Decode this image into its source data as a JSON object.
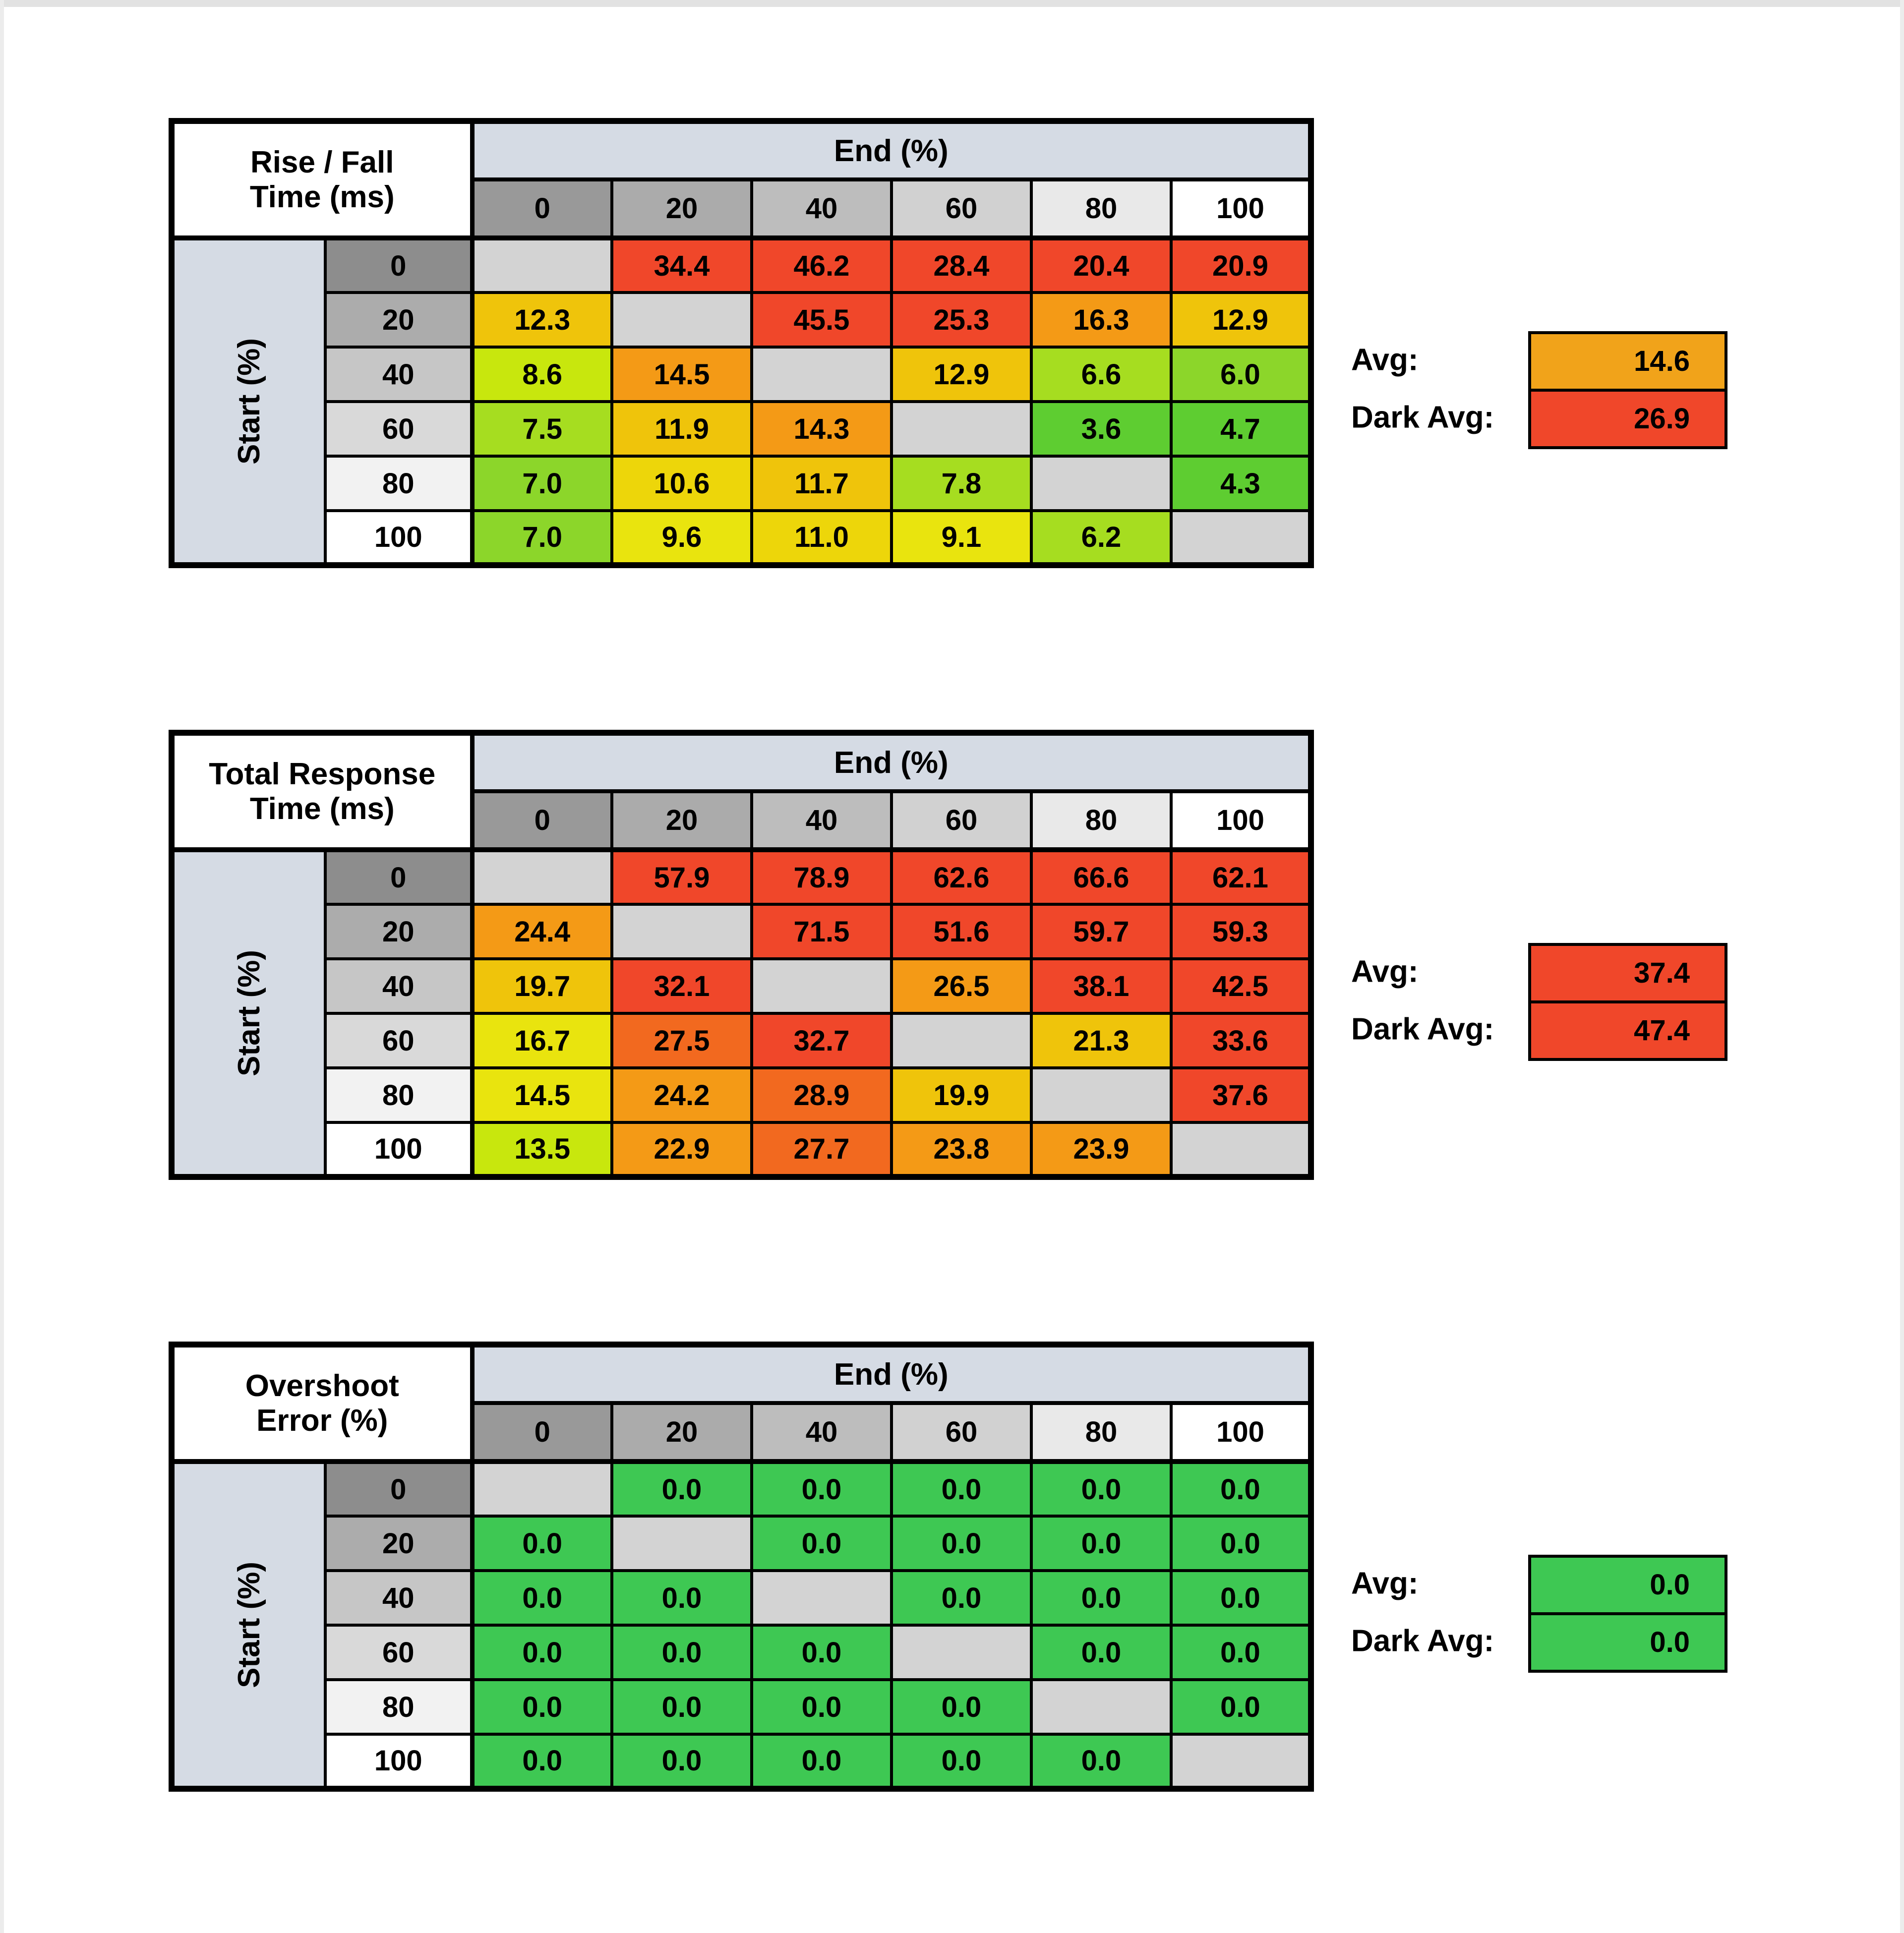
{
  "palette": {
    "diag": "#d3d3d3",
    "red": "#f0472a",
    "orangered": "#f2691f",
    "orange": "#f49a16",
    "gold": "#efc40b",
    "amber": "#edd60a",
    "yellow": "#e9e40e",
    "yellowgreen": "#c8e70d",
    "lime": "#a6dd20",
    "lightgreen": "#8cd62a",
    "green": "#5ecd31",
    "emerald": "#3ec853",
    "avgorange": "#f1a31a",
    "band_blue": "#d5dbe4",
    "col_header_shades": [
      "#999999",
      "#ababab",
      "#bdbdbd",
      "#d1d1d1",
      "#e9e9e9",
      "#ffffff"
    ],
    "row_header_shades": [
      "#8d8d8d",
      "#acacac",
      "#c6c6c6",
      "#d9d9d9",
      "#f2f2f2",
      "#ffffff"
    ]
  },
  "chart_data": [
    {
      "type": "heatmap",
      "title": "Rise / Fall Time (ms)",
      "title_lines": [
        "Rise / Fall",
        "Time (ms)"
      ],
      "xlabel": "End (%)",
      "ylabel": "Start (%)",
      "x_categories": [
        "0",
        "20",
        "40",
        "60",
        "80",
        "100"
      ],
      "y_categories": [
        "0",
        "20",
        "40",
        "60",
        "80",
        "100"
      ],
      "values": [
        [
          null,
          34.4,
          46.2,
          28.4,
          20.4,
          20.9
        ],
        [
          12.3,
          null,
          45.5,
          25.3,
          16.3,
          12.9
        ],
        [
          8.6,
          14.5,
          null,
          12.9,
          6.6,
          6.0
        ],
        [
          7.5,
          11.9,
          14.3,
          null,
          3.6,
          4.7
        ],
        [
          7.0,
          10.6,
          11.7,
          7.8,
          null,
          4.3
        ],
        [
          7.0,
          9.6,
          11.0,
          9.1,
          6.2,
          null
        ]
      ],
      "cell_colors": [
        [
          "diag",
          "red",
          "red",
          "red",
          "red",
          "red"
        ],
        [
          "gold",
          "diag",
          "red",
          "red",
          "orange",
          "gold"
        ],
        [
          "yellowgreen",
          "orange",
          "diag",
          "gold",
          "lime",
          "lightgreen"
        ],
        [
          "lime",
          "gold",
          "orange",
          "diag",
          "green",
          "green"
        ],
        [
          "lightgreen",
          "amber",
          "gold",
          "lime",
          "diag",
          "green"
        ],
        [
          "lightgreen",
          "yellow",
          "amber",
          "yellow",
          "lime",
          "diag"
        ]
      ],
      "avg": {
        "label": "Avg:",
        "value": 14.6,
        "color": "avgorange"
      },
      "dark_avg": {
        "label": "Dark Avg:",
        "value": 26.9,
        "color": "red"
      }
    },
    {
      "type": "heatmap",
      "title": "Total Response Time (ms)",
      "title_lines": [
        "Total Response",
        "Time (ms)"
      ],
      "xlabel": "End (%)",
      "ylabel": "Start (%)",
      "x_categories": [
        "0",
        "20",
        "40",
        "60",
        "80",
        "100"
      ],
      "y_categories": [
        "0",
        "20",
        "40",
        "60",
        "80",
        "100"
      ],
      "values": [
        [
          null,
          57.9,
          78.9,
          62.6,
          66.6,
          62.1
        ],
        [
          24.4,
          null,
          71.5,
          51.6,
          59.7,
          59.3
        ],
        [
          19.7,
          32.1,
          null,
          26.5,
          38.1,
          42.5
        ],
        [
          16.7,
          27.5,
          32.7,
          null,
          21.3,
          33.6
        ],
        [
          14.5,
          24.2,
          28.9,
          19.9,
          null,
          37.6
        ],
        [
          13.5,
          22.9,
          27.7,
          23.8,
          23.9,
          null
        ]
      ],
      "cell_colors": [
        [
          "diag",
          "red",
          "red",
          "red",
          "red",
          "red"
        ],
        [
          "orange",
          "diag",
          "red",
          "red",
          "red",
          "red"
        ],
        [
          "gold",
          "red",
          "diag",
          "orange",
          "red",
          "red"
        ],
        [
          "yellow",
          "orangered",
          "red",
          "diag",
          "gold",
          "red"
        ],
        [
          "yellow",
          "orange",
          "orangered",
          "gold",
          "diag",
          "red"
        ],
        [
          "yellowgreen",
          "orange",
          "orangered",
          "orange",
          "orange",
          "diag"
        ]
      ],
      "avg": {
        "label": "Avg:",
        "value": 37.4,
        "color": "red"
      },
      "dark_avg": {
        "label": "Dark Avg:",
        "value": 47.4,
        "color": "red"
      }
    },
    {
      "type": "heatmap",
      "title": "Overshoot Error (%)",
      "title_lines": [
        "Overshoot",
        "Error (%)"
      ],
      "xlabel": "End (%)",
      "ylabel": "Start (%)",
      "x_categories": [
        "0",
        "20",
        "40",
        "60",
        "80",
        "100"
      ],
      "y_categories": [
        "0",
        "20",
        "40",
        "60",
        "80",
        "100"
      ],
      "values": [
        [
          null,
          0.0,
          0.0,
          0.0,
          0.0,
          0.0
        ],
        [
          0.0,
          null,
          0.0,
          0.0,
          0.0,
          0.0
        ],
        [
          0.0,
          0.0,
          null,
          0.0,
          0.0,
          0.0
        ],
        [
          0.0,
          0.0,
          0.0,
          null,
          0.0,
          0.0
        ],
        [
          0.0,
          0.0,
          0.0,
          0.0,
          null,
          0.0
        ],
        [
          0.0,
          0.0,
          0.0,
          0.0,
          0.0,
          null
        ]
      ],
      "cell_colors": [
        [
          "diag",
          "emerald",
          "emerald",
          "emerald",
          "emerald",
          "emerald"
        ],
        [
          "emerald",
          "diag",
          "emerald",
          "emerald",
          "emerald",
          "emerald"
        ],
        [
          "emerald",
          "emerald",
          "diag",
          "emerald",
          "emerald",
          "emerald"
        ],
        [
          "emerald",
          "emerald",
          "emerald",
          "diag",
          "emerald",
          "emerald"
        ],
        [
          "emerald",
          "emerald",
          "emerald",
          "emerald",
          "diag",
          "emerald"
        ],
        [
          "emerald",
          "emerald",
          "emerald",
          "emerald",
          "emerald",
          "diag"
        ]
      ],
      "avg": {
        "label": "Avg:",
        "value": 0.0,
        "color": "emerald"
      },
      "dark_avg": {
        "label": "Dark Avg:",
        "value": 0.0,
        "color": "emerald"
      }
    }
  ]
}
